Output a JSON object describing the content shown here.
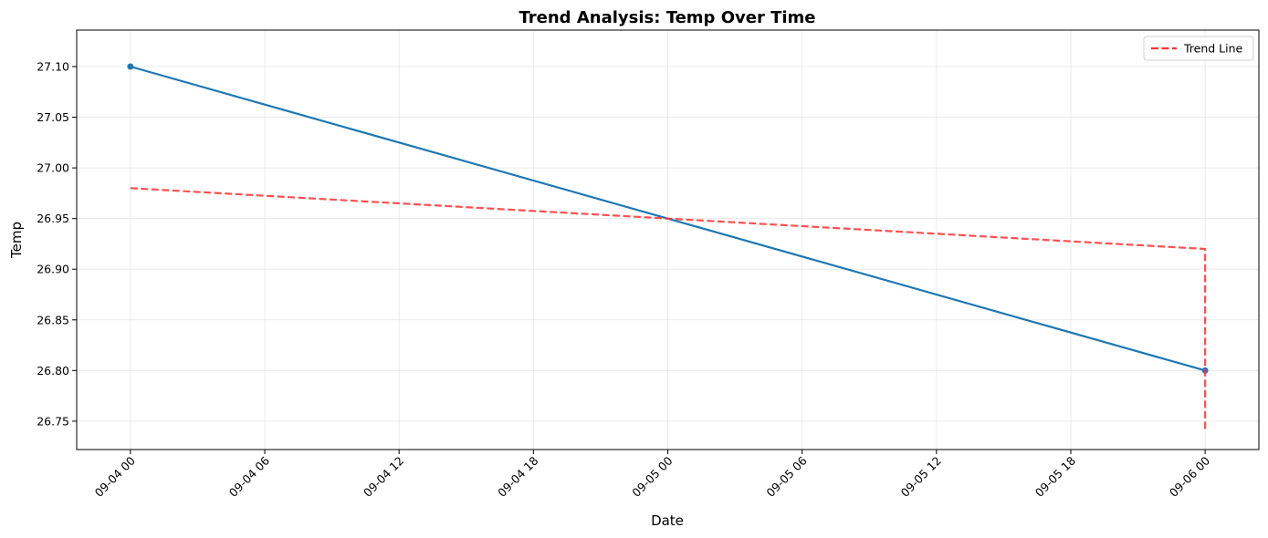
{
  "chart_data": {
    "type": "line",
    "title": "Trend Analysis: Temp Over Time",
    "xlabel": "Date",
    "ylabel": "Temp",
    "x_ticks": [
      "09-04 00",
      "09-04 06",
      "09-04 12",
      "09-04 18",
      "09-05 00",
      "09-05 06",
      "09-05 12",
      "09-05 18",
      "09-06 00"
    ],
    "y_ticks": [
      "26.75",
      "26.80",
      "26.85",
      "26.90",
      "26.95",
      "27.00",
      "27.05",
      "27.10"
    ],
    "xlim": [
      "09-03 21:36",
      "09-06 02:24"
    ],
    "ylim": [
      26.722,
      27.136
    ],
    "grid": true,
    "legend_position": "top-right",
    "series": [
      {
        "color": "#1f77b4",
        "style": "solid",
        "markers": true,
        "points": [
          {
            "x": "09-04 00:00",
            "y": 27.1
          },
          {
            "x": "09-06 00:00",
            "y": 26.8
          }
        ]
      },
      {
        "name": "Trend Line",
        "color": "#ff3333",
        "style": "dashed",
        "markers": false,
        "points": [
          {
            "x": "09-04 00:00",
            "y": 26.98
          },
          {
            "x": "09-06 00:00",
            "y": 26.92
          },
          {
            "x": "09-06 00:00",
            "y": 26.74
          }
        ]
      }
    ]
  }
}
